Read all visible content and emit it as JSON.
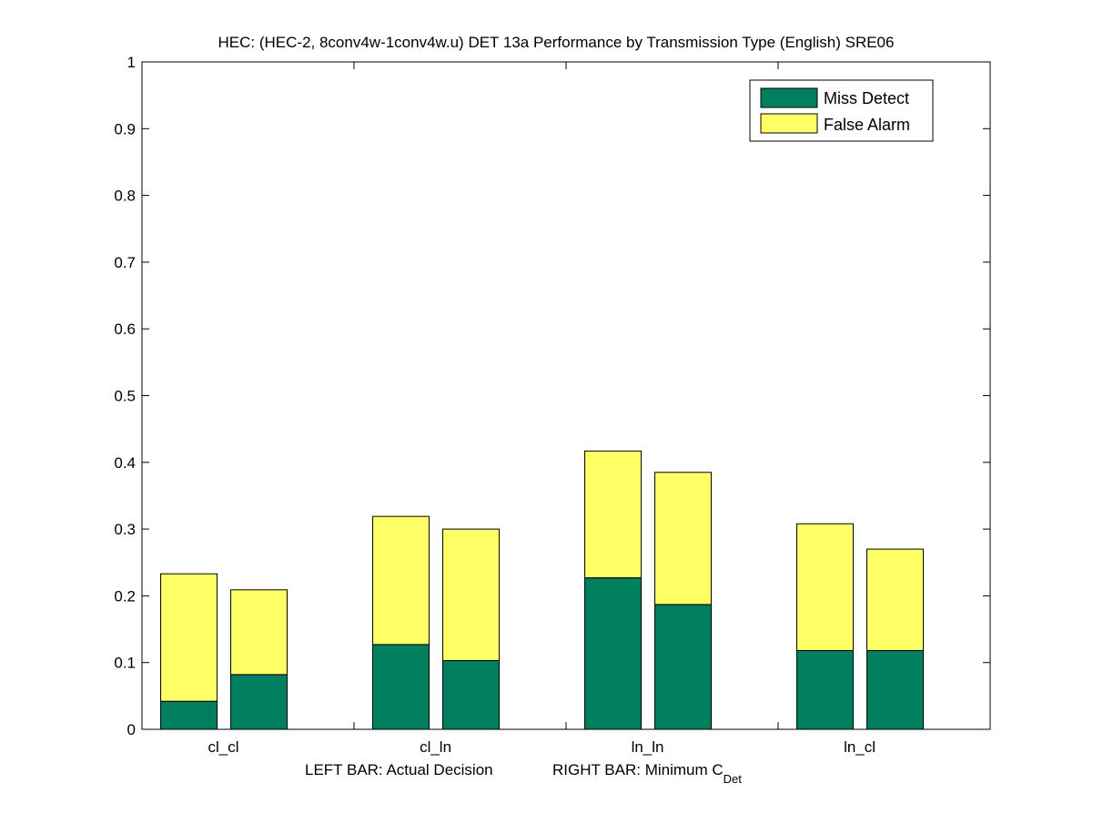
{
  "chart_data": {
    "type": "bar",
    "stacked": true,
    "title": "HEC: (HEC-2, 8conv4w-1conv4w.u) DET 13a Performance by Transmission Type (English) SRE06",
    "xlabel": {
      "left": "LEFT BAR: Actual Decision",
      "right_prefix": "RIGHT BAR: Minimum C",
      "right_subscript": "Det"
    },
    "ylabel": "",
    "ylim": [
      0,
      1
    ],
    "yticks": [
      "0",
      "0.1",
      "0.2",
      "0.3",
      "0.4",
      "0.5",
      "0.6",
      "0.7",
      "0.8",
      "0.9",
      "1"
    ],
    "categories": [
      "cl_cl",
      "cl_ln",
      "ln_ln",
      "ln_cl"
    ],
    "legend_position": "top-right",
    "series": [
      {
        "name": "Miss Detect",
        "color": "#007f5f",
        "actual_decision": [
          0.042,
          0.127,
          0.227,
          0.118
        ],
        "minimum_cdet": [
          0.082,
          0.103,
          0.187,
          0.118
        ]
      },
      {
        "name": "False Alarm",
        "color": "#ffff66",
        "actual_decision": [
          0.191,
          0.192,
          0.19,
          0.19
        ],
        "minimum_cdet": [
          0.127,
          0.197,
          0.198,
          0.152
        ]
      }
    ]
  }
}
